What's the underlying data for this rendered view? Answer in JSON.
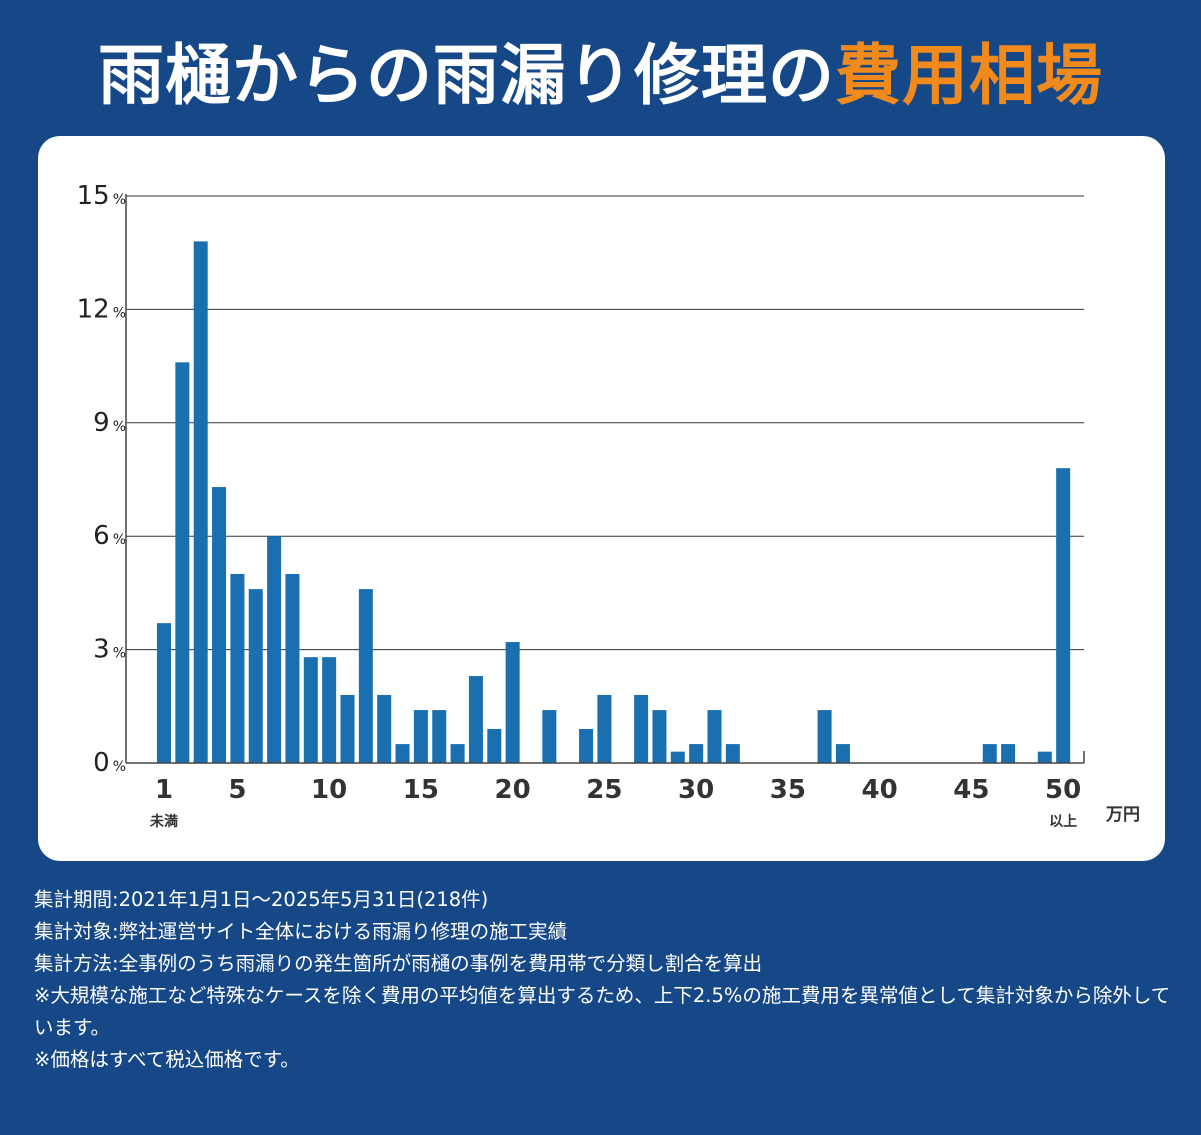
{
  "title": {
    "main": "雨樋からの雨漏り修理の",
    "accent": "費用相場"
  },
  "colors": {
    "background": "#164786",
    "bar": "#1a6fb0",
    "accent": "#f08a1c",
    "card": "#ffffff"
  },
  "chart_data": {
    "type": "bar",
    "ylim": [
      0,
      15
    ],
    "y_ticks": [
      {
        "value": 0,
        "label": "0",
        "unit": "%"
      },
      {
        "value": 3,
        "label": "3",
        "unit": "%"
      },
      {
        "value": 6,
        "label": "6",
        "unit": "%"
      },
      {
        "value": 9,
        "label": "9",
        "unit": "%"
      },
      {
        "value": 12,
        "label": "12",
        "unit": "%"
      },
      {
        "value": 15,
        "label": "15",
        "unit": "%"
      }
    ],
    "x_ticks": [
      {
        "pos": 1,
        "label": "1",
        "sub": "未満"
      },
      {
        "pos": 5,
        "label": "5"
      },
      {
        "pos": 10,
        "label": "10"
      },
      {
        "pos": 15,
        "label": "15"
      },
      {
        "pos": 20,
        "label": "20"
      },
      {
        "pos": 25,
        "label": "25"
      },
      {
        "pos": 30,
        "label": "30"
      },
      {
        "pos": 35,
        "label": "35"
      },
      {
        "pos": 40,
        "label": "40"
      },
      {
        "pos": 45,
        "label": "45"
      },
      {
        "pos": 50,
        "label": "50",
        "sub": "以上"
      }
    ],
    "x_unit": "万円",
    "x_range": [
      1,
      50
    ],
    "x": [
      1,
      2,
      3,
      4,
      5,
      6,
      7,
      8,
      9,
      10,
      11,
      12,
      13,
      14,
      15,
      16,
      17,
      18,
      19,
      20,
      21,
      22,
      23,
      24,
      25,
      26,
      27,
      28,
      29,
      30,
      31,
      32,
      33,
      34,
      35,
      36,
      37,
      38,
      39,
      40,
      41,
      42,
      43,
      44,
      45,
      46,
      47,
      48,
      49,
      50
    ],
    "values": [
      3.7,
      10.6,
      13.8,
      7.3,
      5.0,
      4.6,
      6.0,
      5.0,
      2.8,
      2.8,
      1.8,
      4.6,
      1.8,
      0.5,
      1.4,
      1.4,
      0.5,
      2.3,
      0.9,
      3.2,
      0.0,
      1.4,
      0.0,
      0.9,
      1.8,
      0.0,
      1.8,
      1.4,
      0.3,
      0.5,
      1.4,
      0.5,
      0.0,
      0.0,
      0.0,
      0.0,
      1.4,
      0.5,
      0.0,
      0.0,
      0.0,
      0.0,
      0.0,
      0.0,
      0.0,
      0.5,
      0.5,
      0.0,
      0.3,
      7.8
    ]
  },
  "notes": [
    "集計期間:2021年1月1日～2025年5月31日(218件)",
    "集計対象:弊社運営サイト全体における雨漏り修理の施工実績",
    "集計方法:全事例のうち雨漏りの発生箇所が雨樋の事例を費用帯で分類し割合を算出",
    "※大規模な施工など特殊なケースを除く費用の平均値を算出するため、上下2.5%の施工費用を異常値として集計対象から除外しています。",
    "※価格はすべて税込価格です。"
  ]
}
